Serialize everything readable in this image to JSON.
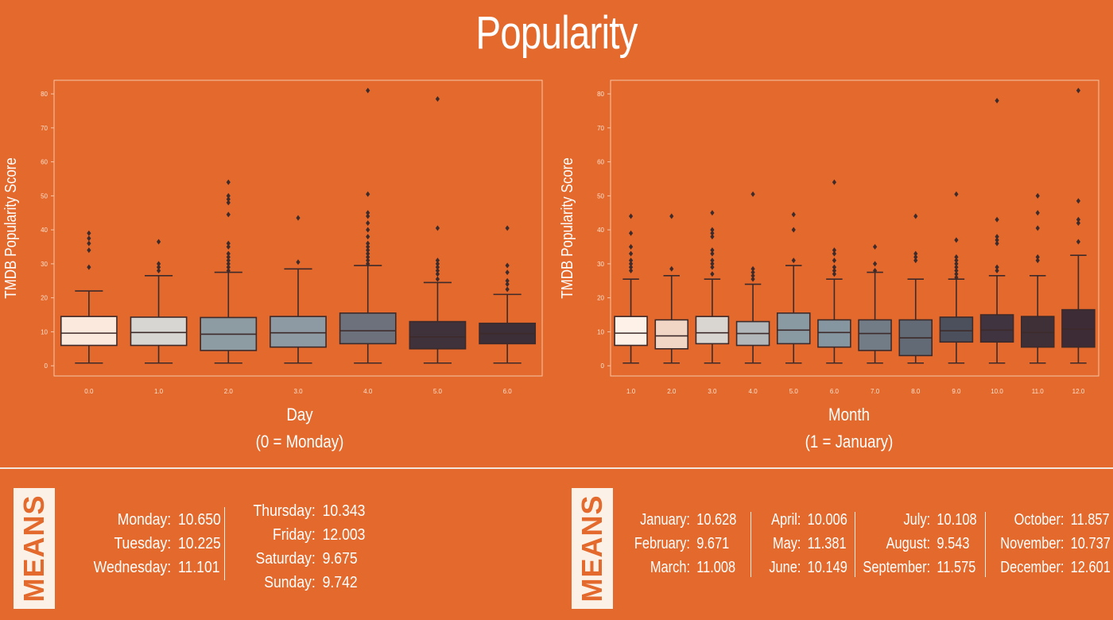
{
  "title": "Popularity",
  "colors": {
    "background": "#e3692c",
    "whisker": "#3d2a2a",
    "text": "#ffffff"
  },
  "chart_data": [
    {
      "type": "box",
      "ylabel": "TMDB Popularity Score",
      "xlabel_line1": "Day",
      "xlabel_line2": "(0 = Monday)",
      "ylim": [
        -3,
        84
      ],
      "yticks": [
        0,
        10,
        20,
        30,
        40,
        50,
        60,
        70,
        80
      ],
      "categories": [
        "0.0",
        "1.0",
        "2.0",
        "3.0",
        "4.0",
        "5.0",
        "6.0"
      ],
      "boxes": [
        {
          "whislo": 0.8,
          "q1": 6,
          "med": 9.6,
          "q3": 14.5,
          "whishi": 22,
          "fliers": [
            29,
            34,
            36,
            37.5,
            39
          ],
          "color": "#fbe9dd"
        },
        {
          "whislo": 0.8,
          "q1": 6,
          "med": 9.8,
          "q3": 14.3,
          "whishi": 26.5,
          "fliers": [
            28,
            29,
            30,
            36.5
          ],
          "color": "#d8d6d2"
        },
        {
          "whislo": 0.8,
          "q1": 4.5,
          "med": 9.3,
          "q3": 14.2,
          "whishi": 27.5,
          "fliers": [
            28,
            29,
            30,
            31,
            32,
            33,
            35,
            36,
            44.5,
            48,
            49,
            50,
            54
          ],
          "color": "#8d9ba3"
        },
        {
          "whislo": 0.8,
          "q1": 5.5,
          "med": 9.7,
          "q3": 14.5,
          "whishi": 28.5,
          "fliers": [
            30.5,
            43.5
          ],
          "color": "#8d99a3"
        },
        {
          "whislo": 0.8,
          "q1": 6.5,
          "med": 10.3,
          "q3": 15.5,
          "whishi": 29.5,
          "fliers": [
            30,
            31,
            32,
            33,
            34,
            35,
            36,
            38,
            40,
            42,
            44,
            45,
            50.5,
            81
          ],
          "color": "#6c717c"
        },
        {
          "whislo": 0.8,
          "q1": 5,
          "med": 8.5,
          "q3": 13,
          "whishi": 24.5,
          "fliers": [
            25.5,
            27,
            28,
            29,
            30,
            31,
            40.5,
            78.5
          ],
          "color": "#3f323a"
        },
        {
          "whislo": 0.8,
          "q1": 6.5,
          "med": 9.5,
          "q3": 12.5,
          "whishi": 21,
          "fliers": [
            22.5,
            24,
            25,
            27.5,
            29.5,
            40.5
          ],
          "color": "#3d2f37"
        }
      ]
    },
    {
      "type": "box",
      "ylabel": "TMDB Popularity Score",
      "xlabel_line1": "Month",
      "xlabel_line2": "(1 = January)",
      "ylim": [
        -3,
        84
      ],
      "yticks": [
        0,
        10,
        20,
        30,
        40,
        50,
        60,
        70,
        80
      ],
      "categories": [
        "1.0",
        "2.0",
        "3.0",
        "4.0",
        "5.0",
        "6.0",
        "7.0",
        "8.0",
        "9.0",
        "10.0",
        "11.0",
        "12.0"
      ],
      "boxes": [
        {
          "whislo": 0.8,
          "q1": 6,
          "med": 9.6,
          "q3": 14.5,
          "whishi": 25.5,
          "fliers": [
            28,
            29,
            30,
            31,
            33,
            35,
            39,
            44
          ],
          "color": "#fdf1e8"
        },
        {
          "whislo": 0.8,
          "q1": 5,
          "med": 8.8,
          "q3": 13.5,
          "whishi": 26.5,
          "fliers": [
            28.5,
            44
          ],
          "color": "#f1d6c6"
        },
        {
          "whislo": 0.8,
          "q1": 6.5,
          "med": 9.7,
          "q3": 14.5,
          "whishi": 25.5,
          "fliers": [
            27,
            29,
            30,
            31,
            33,
            34,
            38,
            39,
            40,
            45
          ],
          "color": "#d9d6d1"
        },
        {
          "whislo": 0.8,
          "q1": 6,
          "med": 9.5,
          "q3": 13,
          "whishi": 24,
          "fliers": [
            25.5,
            26.5,
            27.5,
            28.5,
            50.5
          ],
          "color": "#b2b7ba"
        },
        {
          "whislo": 0.8,
          "q1": 6.5,
          "med": 10.5,
          "q3": 15.5,
          "whishi": 29.5,
          "fliers": [
            31,
            40,
            44.5
          ],
          "color": "#8a9aa3"
        },
        {
          "whislo": 0.8,
          "q1": 5.5,
          "med": 9.8,
          "q3": 13.5,
          "whishi": 25.5,
          "fliers": [
            27,
            28,
            29,
            31,
            33,
            34,
            54
          ],
          "color": "#8696a0"
        },
        {
          "whislo": 0.8,
          "q1": 4.5,
          "med": 9.5,
          "q3": 13.5,
          "whishi": 27.5,
          "fliers": [
            28,
            30,
            35
          ],
          "color": "#727c87"
        },
        {
          "whislo": 0.8,
          "q1": 3,
          "med": 8.2,
          "q3": 13.5,
          "whishi": 25.5,
          "fliers": [
            31,
            32,
            33,
            44
          ],
          "color": "#626a76"
        },
        {
          "whislo": 0.8,
          "q1": 7,
          "med": 10.3,
          "q3": 14.3,
          "whishi": 25.5,
          "fliers": [
            26,
            27,
            28,
            29,
            30,
            31,
            32,
            37,
            50.5
          ],
          "color": "#4c4f5c"
        },
        {
          "whislo": 0.8,
          "q1": 7,
          "med": 10.5,
          "q3": 15,
          "whishi": 26.5,
          "fliers": [
            28,
            29,
            36,
            37,
            38,
            43,
            78
          ],
          "color": "#403440"
        },
        {
          "whislo": 0.8,
          "q1": 5.5,
          "med": 9.8,
          "q3": 14.5,
          "whishi": 26.5,
          "fliers": [
            31,
            32,
            40.5,
            45,
            50
          ],
          "color": "#3f3038"
        },
        {
          "whislo": 0.8,
          "q1": 5.5,
          "med": 10.8,
          "q3": 16.5,
          "whishi": 32.5,
          "fliers": [
            36.5,
            42,
            43,
            48.5,
            81
          ],
          "color": "#3d2c35"
        }
      ]
    }
  ],
  "means_label": "MEANS",
  "day_means": {
    "col1": [
      {
        "name": "Monday:",
        "value": "10.650"
      },
      {
        "name": "Tuesday:",
        "value": "10.225"
      },
      {
        "name": "Wednesday:",
        "value": "11.101"
      }
    ],
    "col2": [
      {
        "name": "Thursday:",
        "value": "10.343"
      },
      {
        "name": "Friday:",
        "value": "12.003"
      },
      {
        "name": "Saturday:",
        "value": "9.675"
      },
      {
        "name": "Sunday:",
        "value": "9.742"
      }
    ]
  },
  "month_means": {
    "col1": [
      {
        "name": "January:",
        "value": "10.628"
      },
      {
        "name": "February:",
        "value": "9.671"
      },
      {
        "name": "March:",
        "value": "11.008"
      }
    ],
    "col2": [
      {
        "name": "April:",
        "value": "10.006"
      },
      {
        "name": "May:",
        "value": "11.381"
      },
      {
        "name": "June:",
        "value": "10.149"
      }
    ],
    "col3": [
      {
        "name": "July:",
        "value": "10.108"
      },
      {
        "name": "August:",
        "value": "9.543"
      },
      {
        "name": "September:",
        "value": "11.575"
      }
    ],
    "col4": [
      {
        "name": "October:",
        "value": "11.857"
      },
      {
        "name": "November:",
        "value": "10.737"
      },
      {
        "name": "December:",
        "value": "12.601"
      }
    ]
  }
}
